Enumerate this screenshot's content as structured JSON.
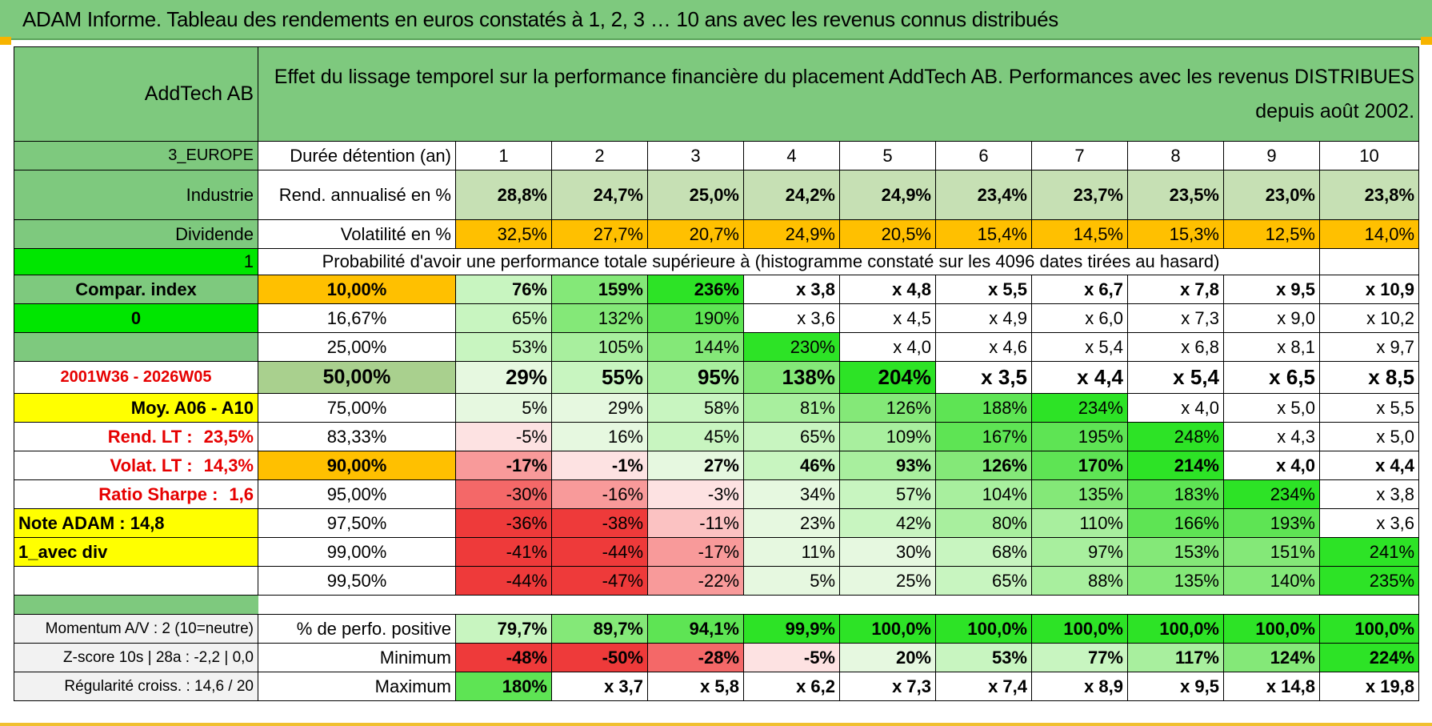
{
  "title": "ADAM Informe. Tableau des rendements en euros constatés à 1, 2, 3 … 10 ans avec les revenus connus distribués",
  "colors": {
    "header_green": "#7ec97e",
    "orange": "#ffc000",
    "yellow": "#ffff00",
    "bright_green": "#00e600",
    "red_text": "#e60000"
  },
  "left": {
    "name": "AddTech AB",
    "region": "3_EUROPE",
    "sector": "Industrie",
    "dividend": "Dividende",
    "flag1": "1",
    "compar_index": "Compar. index",
    "flag0": "0",
    "period": "2001W36 - 2026W05",
    "moy": "Moy. A06 - A10",
    "rend_lt_label": "Rend. LT :",
    "rend_lt_value": "23,5%",
    "volat_lt_label": "Volat. LT :",
    "volat_lt_value": "14,3%",
    "sharpe_label": "Ratio Sharpe :",
    "sharpe_value": "1,6",
    "note": "Note ADAM : 14,8",
    "avec_div": "1_avec div",
    "momentum": "Momentum A/V : 2 (10=neutre)",
    "zscore": "Z-score 10s | 28a : -2,2 | 0,0",
    "regularite": "Régularité croiss. : 14,6 / 20"
  },
  "header_text": "Effet du lissage temporel sur la performance financière du placement AddTech AB. Performances avec les revenus DISTRIBUES depuis août 2002.",
  "duree_label": "Durée détention (an)",
  "years": [
    "1",
    "2",
    "3",
    "4",
    "5",
    "6",
    "7",
    "8",
    "9",
    "10"
  ],
  "rend_label": "Rend. annualisé en %",
  "rend_values": [
    "28,8%",
    "24,7%",
    "25,0%",
    "24,2%",
    "24,9%",
    "23,4%",
    "23,7%",
    "23,5%",
    "23,0%",
    "23,8%"
  ],
  "vol_label": "Volatilité en %",
  "vol_values": [
    "32,5%",
    "27,7%",
    "20,7%",
    "24,9%",
    "20,5%",
    "15,4%",
    "14,5%",
    "15,3%",
    "12,5%",
    "14,0%"
  ],
  "prob_title": "Probabilité d'avoir une performance totale supérieure à (histogramme constaté sur les 4096 dates tirées au hasard)",
  "prob_rows": [
    {
      "pct": "10,00%",
      "values": [
        "76%",
        "159%",
        "236%",
        "x 3,8",
        "x 4,8",
        "x 5,5",
        "x 6,7",
        "x 7,8",
        "x 9,5",
        "x 10,9"
      ]
    },
    {
      "pct": "16,67%",
      "values": [
        "65%",
        "132%",
        "190%",
        "x 3,6",
        "x 4,5",
        "x 4,9",
        "x 6,0",
        "x 7,3",
        "x 9,0",
        "x 10,2"
      ]
    },
    {
      "pct": "25,00%",
      "values": [
        "53%",
        "105%",
        "144%",
        "230%",
        "x 4,0",
        "x 4,6",
        "x 5,4",
        "x 6,8",
        "x 8,1",
        "x 9,7"
      ]
    },
    {
      "pct": "50,00%",
      "values": [
        "29%",
        "55%",
        "95%",
        "138%",
        "204%",
        "x 3,5",
        "x 4,4",
        "x 5,4",
        "x 6,5",
        "x 8,5"
      ]
    },
    {
      "pct": "75,00%",
      "values": [
        "5%",
        "29%",
        "58%",
        "81%",
        "126%",
        "188%",
        "234%",
        "x 4,0",
        "x 5,0",
        "x 5,5"
      ]
    },
    {
      "pct": "83,33%",
      "values": [
        "-5%",
        "16%",
        "45%",
        "65%",
        "109%",
        "167%",
        "195%",
        "248%",
        "x 4,3",
        "x 5,0"
      ]
    },
    {
      "pct": "90,00%",
      "values": [
        "-17%",
        "-1%",
        "27%",
        "46%",
        "93%",
        "126%",
        "170%",
        "214%",
        "x 4,0",
        "x 4,4"
      ]
    },
    {
      "pct": "95,00%",
      "values": [
        "-30%",
        "-16%",
        "-3%",
        "34%",
        "57%",
        "104%",
        "135%",
        "183%",
        "234%",
        "x 3,8"
      ]
    },
    {
      "pct": "97,50%",
      "values": [
        "-36%",
        "-38%",
        "-11%",
        "23%",
        "42%",
        "80%",
        "110%",
        "166%",
        "193%",
        "x 3,6"
      ]
    },
    {
      "pct": "99,00%",
      "values": [
        "-41%",
        "-44%",
        "-17%",
        "11%",
        "30%",
        "68%",
        "97%",
        "153%",
        "151%",
        "241%"
      ]
    },
    {
      "pct": "99,50%",
      "values": [
        "-44%",
        "-47%",
        "-22%",
        "5%",
        "25%",
        "65%",
        "88%",
        "135%",
        "140%",
        "235%"
      ]
    }
  ],
  "stats": [
    {
      "label": "% de perfo. positive",
      "values": [
        "79,7%",
        "89,7%",
        "94,1%",
        "99,9%",
        "100,0%",
        "100,0%",
        "100,0%",
        "100,0%",
        "100,0%",
        "100,0%"
      ]
    },
    {
      "label": "Minimum",
      "values": [
        "-48%",
        "-50%",
        "-28%",
        "-5%",
        "20%",
        "53%",
        "77%",
        "117%",
        "124%",
        "224%"
      ]
    },
    {
      "label": "Maximum",
      "values": [
        "180%",
        "x 3,7",
        "x 5,8",
        "x 6,2",
        "x 7,3",
        "x 7,4",
        "x 8,9",
        "x 9,5",
        "x 14,8",
        "x 19,8"
      ]
    }
  ]
}
